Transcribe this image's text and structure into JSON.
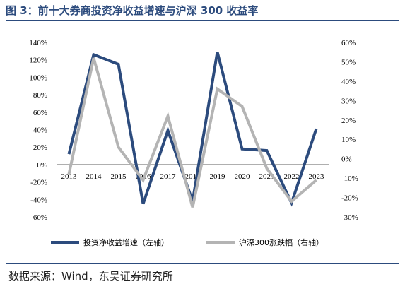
{
  "title": "图 3：前十大券商投资净收益增速与沪深 300 收益率",
  "source": "数据来源：Wind，东吴证券研究所",
  "chart_data": {
    "type": "line",
    "categories": [
      "2013",
      "2014",
      "2015",
      "2016",
      "2017",
      "2018",
      "2019",
      "2020",
      "2021",
      "2022",
      "2023"
    ],
    "left_axis": {
      "ticks": [
        "140%",
        "120%",
        "100%",
        "80%",
        "60%",
        "40%",
        "20%",
        "0%",
        "-20%",
        "-40%",
        "-60%"
      ],
      "ylim": [
        -60,
        140
      ]
    },
    "right_axis": {
      "ticks": [
        "60%",
        "50%",
        "40%",
        "30%",
        "20%",
        "10%",
        "0%",
        "-10%",
        "-20%",
        "-30%"
      ],
      "ylim": [
        -30,
        60
      ]
    },
    "series": [
      {
        "name": "投资净收益增速（左轴）",
        "axis": "left",
        "color": "#2c4b7d",
        "values": [
          12,
          126,
          115,
          -45,
          39,
          -42,
          129,
          18,
          16,
          -44,
          41
        ]
      },
      {
        "name": "沪深300涨跌幅（右轴）",
        "axis": "right",
        "color": "#b4b4b4",
        "values": [
          -8,
          52,
          6,
          -11,
          22,
          -25,
          36,
          27,
          -5,
          -22,
          -11
        ]
      }
    ]
  }
}
